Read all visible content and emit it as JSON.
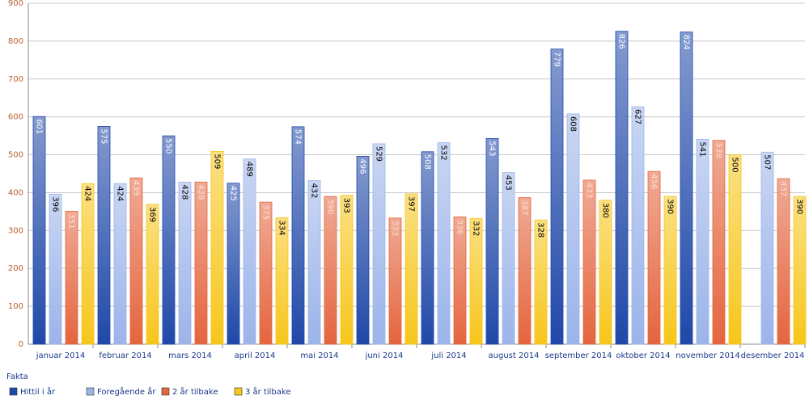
{
  "chart_data": {
    "type": "bar",
    "categories": [
      "januar 2014",
      "februar 2014",
      "mars 2014",
      "april 2014",
      "mai 2014",
      "juni 2014",
      "juli 2014",
      "august 2014",
      "september 2014",
      "oktober 2014",
      "november 2014",
      "desember 2014"
    ],
    "series": [
      {
        "name": "Hittil i år",
        "color": "#1f48a8",
        "values": [
          601,
          575,
          550,
          425,
          574,
          496,
          508,
          543,
          779,
          826,
          824,
          null
        ]
      },
      {
        "name": "Foregående år",
        "color": "#9cb4ea",
        "values": [
          396,
          424,
          428,
          489,
          432,
          529,
          532,
          453,
          608,
          627,
          541,
          507
        ]
      },
      {
        "name": "2 år tilbake",
        "color": "#e4653e",
        "values": [
          351,
          439,
          428,
          375,
          390,
          333,
          336,
          387,
          433,
          456,
          538,
          437
        ]
      },
      {
        "name": "3 år tilbake",
        "color": "#f7c61c",
        "values": [
          424,
          369,
          509,
          334,
          393,
          397,
          332,
          328,
          380,
          390,
          500,
          390
        ]
      }
    ],
    "ylim": [
      0,
      900
    ],
    "yticks": [
      0,
      100,
      200,
      300,
      400,
      500,
      600,
      700,
      800,
      900
    ],
    "grid": true,
    "legend_title": "Fakta",
    "legend": "bottom-left"
  }
}
